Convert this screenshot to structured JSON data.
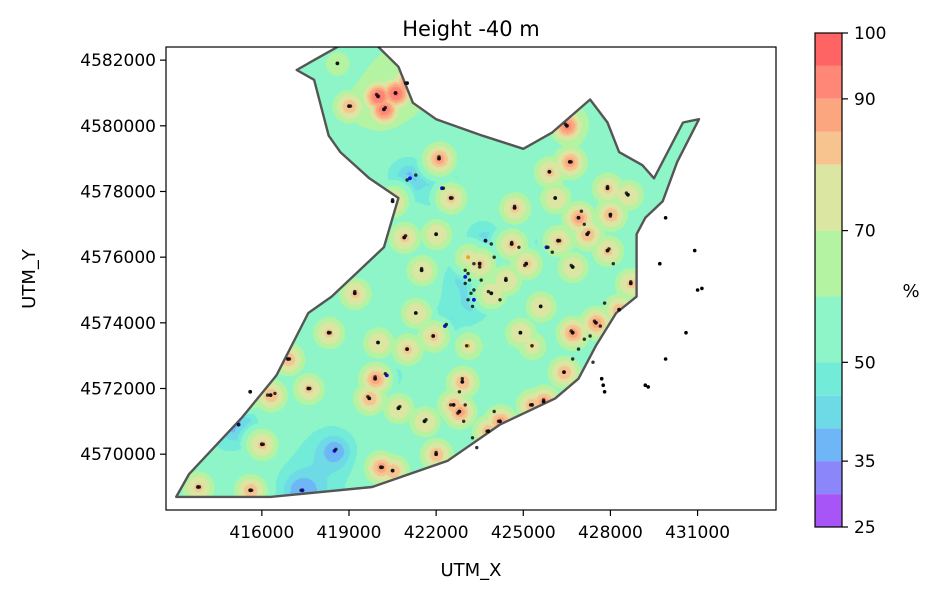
{
  "chart_data": {
    "type": "heatmap",
    "title": "Height -40 m",
    "xlabel": "UTM_X",
    "ylabel": "UTM_Y",
    "xlim": [
      412700,
      433700
    ],
    "ylim": [
      4568300,
      4582400
    ],
    "x_ticks": [
      416000,
      419000,
      422000,
      425000,
      428000,
      431000
    ],
    "y_ticks": [
      4570000,
      4572000,
      4574000,
      4576000,
      4578000,
      4580000,
      4582000
    ],
    "colorbar": {
      "label": "%",
      "range": [
        25,
        100
      ],
      "ticks": [
        25,
        35,
        50,
        70,
        90,
        100
      ],
      "levels": [
        25,
        30,
        35,
        40,
        45,
        50,
        60,
        70,
        80,
        85,
        90,
        95,
        100
      ],
      "colors": [
        "#a855f7",
        "#8b86f9",
        "#6fb6f6",
        "#6edae6",
        "#73ebd9",
        "#8ef5c8",
        "#b4f3a2",
        "#dbe6a3",
        "#f7c48f",
        "#fca67f",
        "#ff8777",
        "#ff6464"
      ]
    },
    "boundary": [
      [
        413050,
        4568700
      ],
      [
        413500,
        4569400
      ],
      [
        415300,
        4571100
      ],
      [
        416500,
        4572400
      ],
      [
        417600,
        4574300
      ],
      [
        418400,
        4574800
      ],
      [
        420200,
        4576300
      ],
      [
        420700,
        4577800
      ],
      [
        419700,
        4578400
      ],
      [
        418700,
        4579200
      ],
      [
        418300,
        4579700
      ],
      [
        417800,
        4581400
      ],
      [
        417200,
        4581700
      ],
      [
        417800,
        4582000
      ],
      [
        418800,
        4582500
      ],
      [
        419900,
        4582500
      ],
      [
        420700,
        4581800
      ],
      [
        421200,
        4580700
      ],
      [
        422000,
        4580200
      ],
      [
        423600,
        4579700
      ],
      [
        425000,
        4579300
      ],
      [
        426000,
        4579800
      ],
      [
        427300,
        4580800
      ],
      [
        427900,
        4580100
      ],
      [
        428300,
        4579200
      ],
      [
        429100,
        4578800
      ],
      [
        429500,
        4578400
      ],
      [
        430500,
        4580100
      ],
      [
        431050,
        4580200
      ],
      [
        430300,
        4578900
      ],
      [
        429800,
        4577700
      ],
      [
        429200,
        4577200
      ],
      [
        428900,
        4576700
      ],
      [
        428900,
        4574800
      ],
      [
        428200,
        4574300
      ],
      [
        427500,
        4573300
      ],
      [
        426900,
        4572300
      ],
      [
        426100,
        4571700
      ],
      [
        424200,
        4570900
      ],
      [
        422400,
        4569800
      ],
      [
        419800,
        4569000
      ],
      [
        416300,
        4568700
      ],
      [
        413050,
        4568700
      ]
    ],
    "sites": [
      {
        "x": 413800,
        "y": 4569000,
        "v": 82
      },
      {
        "x": 415600,
        "y": 4568900,
        "v": 85
      },
      {
        "x": 415200,
        "y": 4570900,
        "v": 30
      },
      {
        "x": 416000,
        "y": 4570300,
        "v": 82
      },
      {
        "x": 416300,
        "y": 4571800,
        "v": 85
      },
      {
        "x": 415600,
        "y": 4571900,
        "v": 82
      },
      {
        "x": 417400,
        "y": 4568900,
        "v": 30
      },
      {
        "x": 416900,
        "y": 4572900,
        "v": 85
      },
      {
        "x": 417600,
        "y": 4572000,
        "v": 82
      },
      {
        "x": 418500,
        "y": 4570100,
        "v": 30
      },
      {
        "x": 418300,
        "y": 4573700,
        "v": 82
      },
      {
        "x": 419200,
        "y": 4574900,
        "v": 82
      },
      {
        "x": 419700,
        "y": 4571700,
        "v": 85
      },
      {
        "x": 419900,
        "y": 4572300,
        "v": 88
      },
      {
        "x": 420300,
        "y": 4572400,
        "v": 30
      },
      {
        "x": 420000,
        "y": 4573400,
        "v": 80
      },
      {
        "x": 420100,
        "y": 4569600,
        "v": 88
      },
      {
        "x": 420500,
        "y": 4569500,
        "v": 85
      },
      {
        "x": 420700,
        "y": 4571400,
        "v": 80
      },
      {
        "x": 421000,
        "y": 4573200,
        "v": 82
      },
      {
        "x": 420900,
        "y": 4576600,
        "v": 82
      },
      {
        "x": 420500,
        "y": 4577700,
        "v": 82
      },
      {
        "x": 421100,
        "y": 4578400,
        "v": 30
      },
      {
        "x": 421500,
        "y": 4575600,
        "v": 80
      },
      {
        "x": 421300,
        "y": 4574300,
        "v": 80
      },
      {
        "x": 421600,
        "y": 4571000,
        "v": 80
      },
      {
        "x": 421900,
        "y": 4573600,
        "v": 82
      },
      {
        "x": 422000,
        "y": 4570000,
        "v": 85
      },
      {
        "x": 422000,
        "y": 4576700,
        "v": 80
      },
      {
        "x": 422100,
        "y": 4579000,
        "v": 88
      },
      {
        "x": 422200,
        "y": 4578100,
        "v": 30
      },
      {
        "x": 422500,
        "y": 4577800,
        "v": 82
      },
      {
        "x": 422300,
        "y": 4573900,
        "v": 30
      },
      {
        "x": 422600,
        "y": 4571500,
        "v": 85
      },
      {
        "x": 422900,
        "y": 4572200,
        "v": 85
      },
      {
        "x": 422800,
        "y": 4571300,
        "v": 88
      },
      {
        "x": 423100,
        "y": 4573300,
        "v": 75
      },
      {
        "x": 423000,
        "y": 4575400,
        "v": 30
      },
      {
        "x": 423100,
        "y": 4576000,
        "v": 75
      },
      {
        "x": 423300,
        "y": 4574700,
        "v": 30
      },
      {
        "x": 423500,
        "y": 4575800,
        "v": 82
      },
      {
        "x": 423700,
        "y": 4576500,
        "v": 30
      },
      {
        "x": 423900,
        "y": 4574900,
        "v": 80
      },
      {
        "x": 423800,
        "y": 4570700,
        "v": 85
      },
      {
        "x": 424200,
        "y": 4571000,
        "v": 88
      },
      {
        "x": 424400,
        "y": 4575300,
        "v": 80
      },
      {
        "x": 424700,
        "y": 4577500,
        "v": 82
      },
      {
        "x": 424600,
        "y": 4576400,
        "v": 82
      },
      {
        "x": 424900,
        "y": 4573700,
        "v": 80
      },
      {
        "x": 425100,
        "y": 4575800,
        "v": 82
      },
      {
        "x": 425300,
        "y": 4573300,
        "v": 75
      },
      {
        "x": 425300,
        "y": 4571500,
        "v": 85
      },
      {
        "x": 425700,
        "y": 4571600,
        "v": 88
      },
      {
        "x": 425800,
        "y": 4576300,
        "v": 30
      },
      {
        "x": 425600,
        "y": 4574500,
        "v": 80
      },
      {
        "x": 425900,
        "y": 4578600,
        "v": 82
      },
      {
        "x": 426100,
        "y": 4577800,
        "v": 80
      },
      {
        "x": 426200,
        "y": 4576500,
        "v": 82
      },
      {
        "x": 426400,
        "y": 4572500,
        "v": 85
      },
      {
        "x": 426700,
        "y": 4573700,
        "v": 88
      },
      {
        "x": 426700,
        "y": 4575700,
        "v": 80
      },
      {
        "x": 426900,
        "y": 4577200,
        "v": 88
      },
      {
        "x": 426600,
        "y": 4578900,
        "v": 88
      },
      {
        "x": 426500,
        "y": 4580000,
        "v": 92
      },
      {
        "x": 427200,
        "y": 4576700,
        "v": 85
      },
      {
        "x": 427500,
        "y": 4574000,
        "v": 88
      },
      {
        "x": 427900,
        "y": 4578100,
        "v": 82
      },
      {
        "x": 428000,
        "y": 4577300,
        "v": 85
      },
      {
        "x": 427900,
        "y": 4576200,
        "v": 82
      },
      {
        "x": 428300,
        "y": 4574400,
        "v": 85
      },
      {
        "x": 428700,
        "y": 4575200,
        "v": 82
      },
      {
        "x": 428600,
        "y": 4577900,
        "v": 80
      },
      {
        "x": 418600,
        "y": 4581900,
        "v": 70
      },
      {
        "x": 419000,
        "y": 4580600,
        "v": 85
      },
      {
        "x": 420000,
        "y": 4580900,
        "v": 96
      },
      {
        "x": 420600,
        "y": 4581000,
        "v": 96
      },
      {
        "x": 420200,
        "y": 4580500,
        "v": 94
      },
      {
        "x": 421000,
        "y": 4581300,
        "v": 90
      }
    ],
    "points_inside": [
      [
        413850,
        4569000
      ],
      [
        415650,
        4568900
      ],
      [
        415200,
        4570900
      ],
      [
        416050,
        4570300
      ],
      [
        416200,
        4571800
      ],
      [
        416450,
        4571850
      ],
      [
        416950,
        4572900
      ],
      [
        417350,
        4568900
      ],
      [
        417650,
        4572000
      ],
      [
        418350,
        4573700
      ],
      [
        418550,
        4570150
      ],
      [
        419200,
        4574950
      ],
      [
        419650,
        4571750
      ],
      [
        419900,
        4572350
      ],
      [
        420250,
        4572450
      ],
      [
        420150,
        4569600
      ],
      [
        420500,
        4569500
      ],
      [
        420750,
        4571450
      ],
      [
        421000,
        4573200
      ],
      [
        420950,
        4576650
      ],
      [
        420500,
        4577750
      ],
      [
        421000,
        4578350
      ],
      [
        421300,
        4578500
      ],
      [
        421500,
        4575650
      ],
      [
        421650,
        4571050
      ],
      [
        422000,
        4570050
      ],
      [
        422100,
        4579050
      ],
      [
        422250,
        4578100
      ],
      [
        422550,
        4577800
      ],
      [
        422350,
        4573950
      ],
      [
        422500,
        4571500
      ],
      [
        422750,
        4571250
      ],
      [
        422900,
        4572300
      ],
      [
        423000,
        4571500
      ],
      [
        422800,
        4571900
      ],
      [
        423050,
        4573300
      ],
      [
        423100,
        4575500
      ],
      [
        423000,
        4575600
      ],
      [
        423150,
        4575300
      ],
      [
        423000,
        4575200
      ],
      [
        423200,
        4574900
      ],
      [
        423100,
        4574700
      ],
      [
        423300,
        4575800
      ],
      [
        423500,
        4575700
      ],
      [
        423550,
        4575300
      ],
      [
        423700,
        4576500
      ],
      [
        423900,
        4576400
      ],
      [
        423800,
        4574950
      ],
      [
        423750,
        4570700
      ],
      [
        424150,
        4571000
      ],
      [
        424400,
        4575350
      ],
      [
        424700,
        4577550
      ],
      [
        424600,
        4576450
      ],
      [
        424850,
        4576300
      ],
      [
        424900,
        4573700
      ],
      [
        425050,
        4575750
      ],
      [
        425300,
        4573300
      ],
      [
        425250,
        4571500
      ],
      [
        425700,
        4571650
      ],
      [
        425850,
        4576300
      ],
      [
        426000,
        4576150
      ],
      [
        425600,
        4574500
      ],
      [
        425900,
        4578600
      ],
      [
        426100,
        4577800
      ],
      [
        426250,
        4576500
      ],
      [
        426400,
        4572500
      ],
      [
        426650,
        4573750
      ],
      [
        426650,
        4575750
      ],
      [
        426900,
        4577200
      ],
      [
        427100,
        4577000
      ],
      [
        427000,
        4577400
      ],
      [
        426650,
        4578900
      ],
      [
        426450,
        4580050
      ],
      [
        427250,
        4576750
      ],
      [
        427450,
        4574050
      ],
      [
        427650,
        4573900
      ],
      [
        427300,
        4573600
      ],
      [
        427900,
        4578150
      ],
      [
        428000,
        4577250
      ],
      [
        427950,
        4576250
      ],
      [
        428300,
        4574400
      ],
      [
        428700,
        4575250
      ],
      [
        428550,
        4577950
      ],
      [
        419050,
        4580600
      ],
      [
        419950,
        4580950
      ],
      [
        420600,
        4581000
      ],
      [
        420250,
        4580550
      ],
      [
        420950,
        4581300
      ],
      [
        423250,
        4574500
      ],
      [
        423300,
        4575000
      ],
      [
        424000,
        4576000
      ],
      [
        424200,
        4574700
      ],
      [
        422950,
        4571000
      ],
      [
        423250,
        4570500
      ],
      [
        423400,
        4570200
      ],
      [
        424000,
        4571300
      ],
      [
        426700,
        4572900
      ],
      [
        426900,
        4573200
      ],
      [
        427100,
        4573500
      ],
      [
        427400,
        4572800
      ],
      [
        427800,
        4574600
      ],
      [
        428100,
        4575800
      ]
    ],
    "points_outside": [
      [
        429900,
        4577200
      ],
      [
        429700,
        4575800
      ],
      [
        430900,
        4576200
      ],
      [
        431000,
        4575000
      ],
      [
        431150,
        4575050
      ],
      [
        430600,
        4573700
      ],
      [
        429900,
        4572900
      ],
      [
        429200,
        4572100
      ],
      [
        429300,
        4572050
      ],
      [
        427700,
        4572300
      ],
      [
        427750,
        4572100
      ],
      [
        427800,
        4571900
      ]
    ]
  }
}
